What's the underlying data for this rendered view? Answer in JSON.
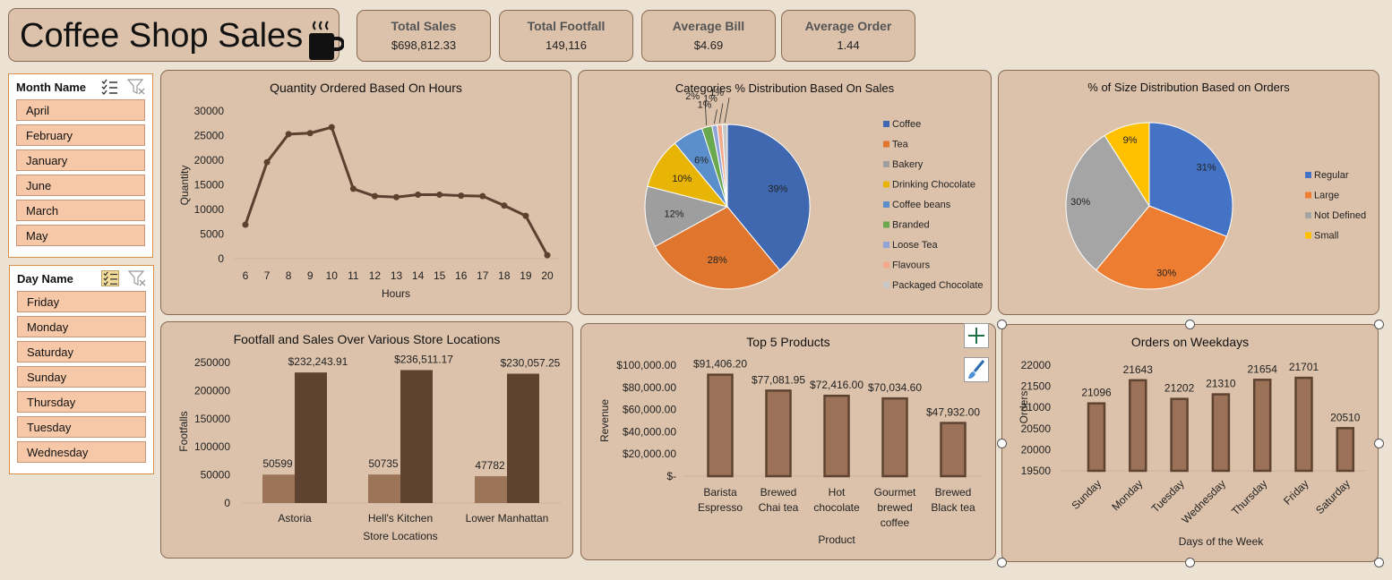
{
  "header": {
    "title": "Coffee Shop Sales",
    "icon": "coffee-cup-icon"
  },
  "kpis": [
    {
      "label": "Total Sales",
      "value": "$698,812.33"
    },
    {
      "label": "Total Footfall",
      "value": "149,116"
    },
    {
      "label": "Average Bill",
      "value": "$4.69"
    },
    {
      "label": "Average Order",
      "value": "1.44"
    }
  ],
  "slicers": {
    "month": {
      "title": "Month Name",
      "items": [
        "April",
        "February",
        "January",
        "June",
        "March",
        "May"
      ]
    },
    "day": {
      "title": "Day Name",
      "items": [
        "Friday",
        "Monday",
        "Saturday",
        "Sunday",
        "Thursday",
        "Tuesday",
        "Wednesday"
      ]
    }
  },
  "chart_data": [
    {
      "type": "line",
      "title": "Quantity Ordered Based On Hours",
      "xlabel": "Hours",
      "ylabel": "Quantity",
      "x": [
        6,
        7,
        8,
        9,
        10,
        11,
        12,
        13,
        14,
        15,
        16,
        17,
        18,
        19,
        20
      ],
      "values": [
        6900,
        19600,
        25300,
        25500,
        26700,
        14200,
        12700,
        12500,
        13000,
        13000,
        12800,
        12700,
        10800,
        8700,
        700
      ],
      "ylim": [
        0,
        30000
      ],
      "yticks": [
        "30000",
        "25000",
        "20000",
        "15000",
        "10000",
        "5000",
        "0"
      ],
      "color": "#5c4030"
    },
    {
      "type": "pie",
      "title": "Categories % Distribution Based On Sales",
      "legend_position": "right",
      "slices": [
        {
          "name": "Coffee",
          "value": 39,
          "label": "39%",
          "color": "#4068b0"
        },
        {
          "name": "Tea",
          "value": 28,
          "label": "28%",
          "color": "#e0762e"
        },
        {
          "name": "Bakery",
          "value": 12,
          "label": "12%",
          "color": "#9e9e9e"
        },
        {
          "name": "Drinking Chocolate",
          "value": 10,
          "label": "10%",
          "color": "#e8b405"
        },
        {
          "name": "Coffee beans",
          "value": 6,
          "label": "6%",
          "color": "#5b8fcb"
        },
        {
          "name": "Branded",
          "value": 2,
          "label": "2%",
          "color": "#6aa84f"
        },
        {
          "name": "Loose Tea",
          "value": 1,
          "label": "1%",
          "color": "#8fa4d8"
        },
        {
          "name": "Flavours",
          "value": 1,
          "label": "1%",
          "color": "#f2a889"
        },
        {
          "name": "Packaged Chocolate",
          "value": 1,
          "label": "1%",
          "color": "#c8c8c8"
        }
      ]
    },
    {
      "type": "pie",
      "title": "% of Size Distribution Based on Orders",
      "legend_position": "right",
      "slices": [
        {
          "name": "Regular",
          "value": 31,
          "label": "31%",
          "color": "#4472c4"
        },
        {
          "name": "Large",
          "value": 30,
          "label": "30%",
          "color": "#ed7d31"
        },
        {
          "name": "Not Defined",
          "value": 30,
          "label": "30%",
          "color": "#a5a5a5"
        },
        {
          "name": "Small",
          "value": 9,
          "label": "9%",
          "color": "#ffc000"
        }
      ]
    },
    {
      "type": "bar",
      "title": "Footfall and Sales Over Various Store Locations",
      "xlabel": "Store Locations",
      "ylabel": "Footfalls",
      "categories": [
        "Astoria",
        "Hell's Kitchen",
        "Lower Manhattan"
      ],
      "series": [
        {
          "values": [
            50599,
            50735,
            47782
          ],
          "labels": [
            "50599",
            "50735",
            "47782"
          ],
          "color": "#9c7458"
        },
        {
          "values": [
            232243.91,
            236511.17,
            230057.25
          ],
          "labels": [
            "$232,243.91",
            "$236,511.17",
            "$230,057.25"
          ],
          "color": "#5e4430"
        }
      ],
      "ylim": [
        0,
        250000
      ],
      "yticks": [
        "250000",
        "200000",
        "150000",
        "100000",
        "50000",
        "0"
      ]
    },
    {
      "type": "bar",
      "title": "Top 5 Products",
      "xlabel": "Product",
      "ylabel": "Revenue",
      "categories": [
        [
          "Barista",
          "Espresso"
        ],
        [
          "Brewed",
          "Chai tea"
        ],
        [
          "Hot",
          "chocolate"
        ],
        [
          "Gourmet",
          "brewed",
          "coffee"
        ],
        [
          "Brewed",
          "Black tea"
        ]
      ],
      "values": [
        91406.2,
        77081.95,
        72416.0,
        70034.6,
        47932.0
      ],
      "labels": [
        "$91,406.20",
        "$77,081.95",
        "$72,416.00",
        "$70,034.60",
        "$47,932.00"
      ],
      "ylim": [
        0,
        100000
      ],
      "yticks": [
        "$100,000.00",
        "$80,000.00",
        "$60,000.00",
        "$40,000.00",
        "$20,000.00",
        "$-"
      ],
      "color": "#9b7258"
    },
    {
      "type": "bar",
      "title": "Orders on Weekdays",
      "xlabel": "Days of the Week",
      "ylabel": "Orders",
      "categories": [
        "Sunday",
        "Monday",
        "Tuesday",
        "Wednesday",
        "Thursday",
        "Friday",
        "Saturday"
      ],
      "values": [
        21096,
        21643,
        21202,
        21310,
        21654,
        21701,
        20510
      ],
      "labels": [
        "21096",
        "21643",
        "21202",
        "21310",
        "21654",
        "21701",
        "20510"
      ],
      "ylim": [
        19500,
        22000
      ],
      "yticks": [
        "22000",
        "21500",
        "21000",
        "20500",
        "20000",
        "19500"
      ],
      "color": "#9b7258"
    }
  ],
  "chart_tools": {
    "add_element_icon": "plus-icon",
    "style_icon": "paintbrush-icon"
  }
}
